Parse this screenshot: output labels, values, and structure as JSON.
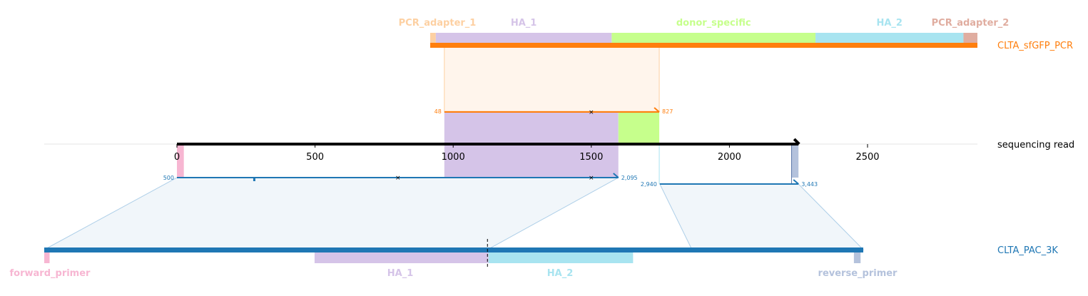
{
  "tracks": {
    "donor": {
      "label": "CLTA_sfGFP_PCR",
      "color": "#ff7f0e"
    },
    "read": {
      "label": "sequencing read",
      "color": "#000000"
    },
    "target": {
      "label": "CLTA_PAC_3K",
      "color": "#1f77b4"
    }
  },
  "read_axis": {
    "ticks": [
      {
        "value": 0,
        "label": "0"
      },
      {
        "value": 500,
        "label": "500"
      },
      {
        "value": 1000,
        "label": "1000"
      },
      {
        "value": 1500,
        "label": "1500"
      },
      {
        "value": 2000,
        "label": "2000"
      },
      {
        "value": 2500,
        "label": "2500"
      }
    ],
    "length": 2250,
    "view_start": -480,
    "view_end": 2890
  },
  "donor_features": [
    {
      "name": "PCR_adapter_1",
      "label": "PCR_adapter_1",
      "color": "#fdd0a2",
      "start": 0,
      "end": 20
    },
    {
      "name": "HA_1",
      "label": "HA_1",
      "color": "#d5c4e8",
      "start": 20,
      "end": 650
    },
    {
      "name": "donor_specific",
      "label": "donor_specific",
      "color": "#c6ff8c",
      "start": 650,
      "end": 1380
    },
    {
      "name": "HA_2",
      "label": "HA_2",
      "color": "#a8e4f0",
      "start": 1380,
      "end": 1910
    },
    {
      "name": "PCR_adapter_2",
      "label": "PCR_adapter_2",
      "color": "#e0ada0",
      "start": 1910,
      "end": 1960
    }
  ],
  "donor_alignment": {
    "query_start": 968,
    "query_end": 1746,
    "ref_start_label": "48",
    "ref_end_label": "827",
    "mismatch_at": 1500
  },
  "target_features": [
    {
      "name": "forward_primer",
      "label": "forward_primer",
      "color": "#f7b6d2",
      "start": 0,
      "end": 20
    },
    {
      "name": "HA_1",
      "label": "HA_1",
      "color": "#d5c4e8",
      "start": 1010,
      "end": 1660
    },
    {
      "name": "HA_2",
      "label": "HA_2",
      "color": "#a8e4f0",
      "start": 1660,
      "end": 2200
    },
    {
      "name": "reverse_primer",
      "label": "reverse_primer",
      "color": "#b4c2dc",
      "start": 3025,
      "end": 3050
    }
  ],
  "target_alignments": [
    {
      "query_start": 0,
      "query_end": 1598,
      "ref_start": 0,
      "ref_end": 1656,
      "ref_start_label": "500",
      "ref_end_label": "2,095",
      "mismatches": [
        800,
        1500
      ],
      "indels": [
        280
      ]
    },
    {
      "query_start": 1748,
      "query_end": 2250,
      "ref_start": 2420,
      "ref_end": 3060,
      "ref_start_label": "2,940",
      "ref_end_label": "3,443",
      "mismatches": [],
      "indels": []
    }
  ],
  "read_highlights": [
    {
      "name": "forward_primer",
      "color": "#f7b6d2",
      "start": 0,
      "end": 25
    },
    {
      "name": "reverse_primer",
      "color": "#b4c2dc",
      "start": 2225,
      "end": 2250
    }
  ],
  "target_cut_site": 1656,
  "target_length": 3060
}
